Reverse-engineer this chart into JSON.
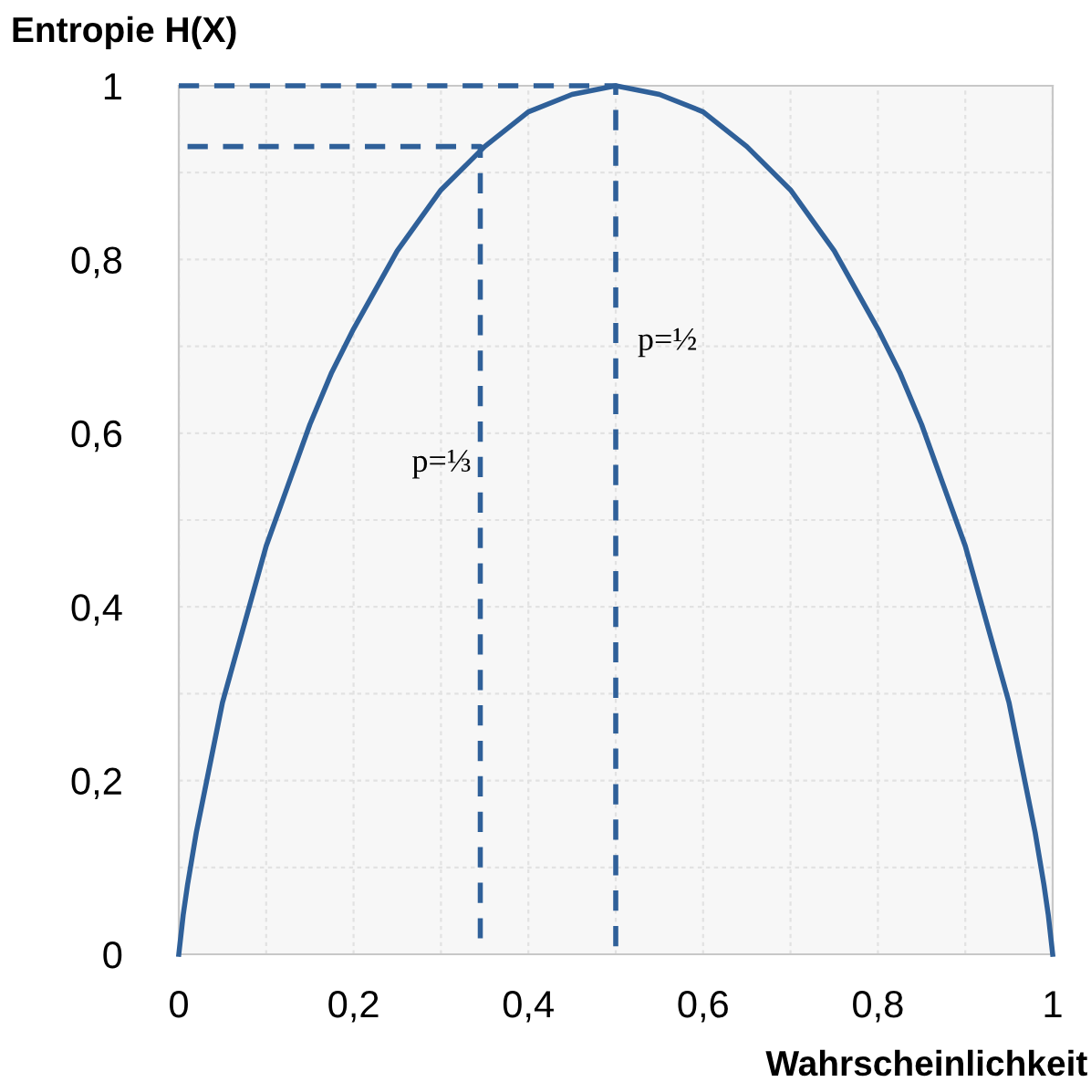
{
  "chart_data": {
    "type": "line",
    "xlabel": "Wahrscheinlichkeit",
    "ylabel": "Entropie H(X)",
    "xlim": [
      0,
      1
    ],
    "ylim": [
      0,
      1
    ],
    "xticks": [
      {
        "value": 0,
        "label": "0"
      },
      {
        "value": 0.1,
        "label": null
      },
      {
        "value": 0.2,
        "label": "0,2"
      },
      {
        "value": 0.3,
        "label": null
      },
      {
        "value": 0.4,
        "label": "0,4"
      },
      {
        "value": 0.5,
        "label": null
      },
      {
        "value": 0.6,
        "label": "0,6"
      },
      {
        "value": 0.7,
        "label": null
      },
      {
        "value": 0.8,
        "label": "0,8"
      },
      {
        "value": 0.9,
        "label": null
      },
      {
        "value": 1,
        "label": "1"
      }
    ],
    "yticks": [
      {
        "value": 0,
        "label": "0"
      },
      {
        "value": 0.1,
        "label": null
      },
      {
        "value": 0.2,
        "label": "0,2"
      },
      {
        "value": 0.3,
        "label": null
      },
      {
        "value": 0.4,
        "label": "0,4"
      },
      {
        "value": 0.5,
        "label": null
      },
      {
        "value": 0.6,
        "label": "0,6"
      },
      {
        "value": 0.7,
        "label": null
      },
      {
        "value": 0.8,
        "label": "0,8"
      },
      {
        "value": 0.9,
        "label": null
      },
      {
        "value": 1,
        "label": "1"
      }
    ],
    "grid": true,
    "legend": false,
    "marker": "none",
    "series": [
      {
        "color": "#2f6099",
        "line_style": "solid",
        "x": [
          0,
          0.005,
          0.01,
          0.02,
          0.03,
          0.05,
          0.075,
          0.1,
          0.125,
          0.15,
          0.175,
          0.2,
          0.25,
          0.3,
          0.35,
          0.4,
          0.45,
          0.5,
          0.55,
          0.6,
          0.65,
          0.7,
          0.75,
          0.8,
          0.825,
          0.85,
          0.875,
          0.9,
          0.925,
          0.95,
          0.97,
          0.98,
          0.99,
          0.995,
          1
        ],
        "values": [
          0,
          0.045,
          0.08,
          0.14,
          0.19,
          0.29,
          0.38,
          0.47,
          0.54,
          0.61,
          0.67,
          0.72,
          0.81,
          0.88,
          0.93,
          0.97,
          0.99,
          1,
          0.99,
          0.97,
          0.93,
          0.88,
          0.81,
          0.72,
          0.67,
          0.61,
          0.54,
          0.47,
          0.38,
          0.29,
          0.19,
          0.14,
          0.08,
          0.045,
          0
        ]
      },
      {
        "color": "#2f6099",
        "line_style": "dashed",
        "x": [
          0.01,
          0.345,
          0.345
        ],
        "values": [
          0.93,
          0.93,
          0.01
        ]
      },
      {
        "color": "#2f6099",
        "line_style": "dashed",
        "x": [
          0,
          0.5,
          0.5
        ],
        "values": [
          1,
          1,
          0
        ]
      }
    ],
    "annotations": [
      "p=⅓",
      "p=½"
    ]
  }
}
